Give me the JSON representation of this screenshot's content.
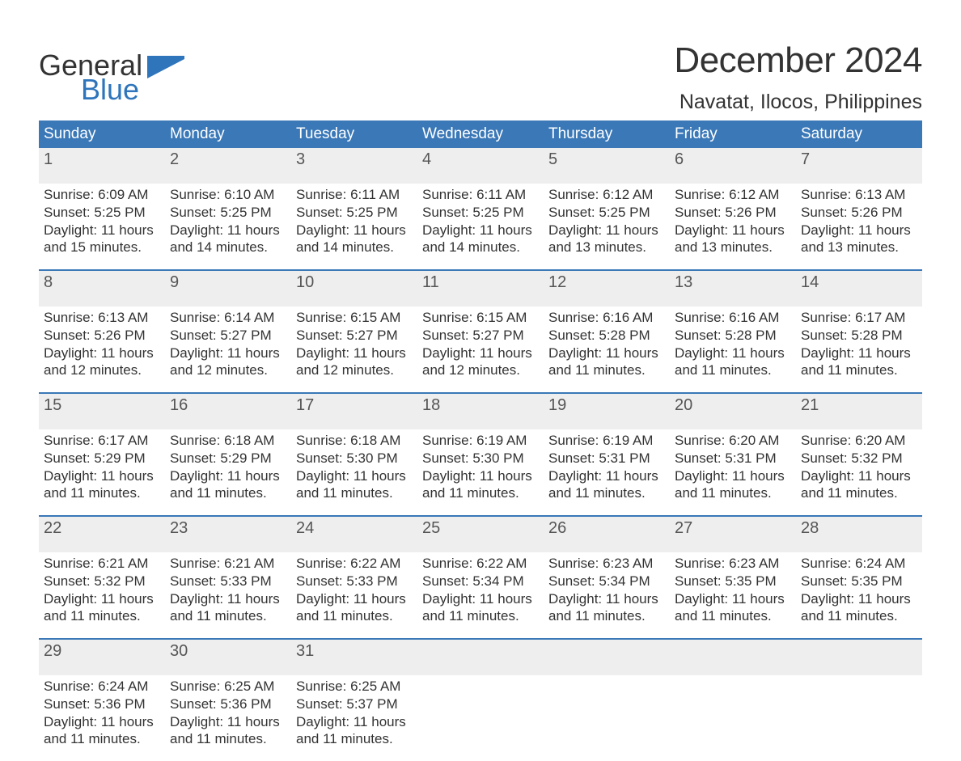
{
  "logo": {
    "line1": "General",
    "line2": "Blue",
    "text_color": "#333333",
    "accent_color": "#2f75bb"
  },
  "header": {
    "month_title": "December 2024",
    "location": "Navatat, Ilocos, Philippines"
  },
  "calendar": {
    "header_bg": "#3a78b8",
    "header_fg": "#ffffff",
    "daynum_bg": "#eeeeee",
    "sep_color": "#3a78b8",
    "day_names": [
      "Sunday",
      "Monday",
      "Tuesday",
      "Wednesday",
      "Thursday",
      "Friday",
      "Saturday"
    ],
    "weeks": [
      [
        {
          "n": "1",
          "sunrise": "Sunrise: 6:09 AM",
          "sunset": "Sunset: 5:25 PM",
          "dl1": "Daylight: 11 hours",
          "dl2": "and 15 minutes."
        },
        {
          "n": "2",
          "sunrise": "Sunrise: 6:10 AM",
          "sunset": "Sunset: 5:25 PM",
          "dl1": "Daylight: 11 hours",
          "dl2": "and 14 minutes."
        },
        {
          "n": "3",
          "sunrise": "Sunrise: 6:11 AM",
          "sunset": "Sunset: 5:25 PM",
          "dl1": "Daylight: 11 hours",
          "dl2": "and 14 minutes."
        },
        {
          "n": "4",
          "sunrise": "Sunrise: 6:11 AM",
          "sunset": "Sunset: 5:25 PM",
          "dl1": "Daylight: 11 hours",
          "dl2": "and 14 minutes."
        },
        {
          "n": "5",
          "sunrise": "Sunrise: 6:12 AM",
          "sunset": "Sunset: 5:25 PM",
          "dl1": "Daylight: 11 hours",
          "dl2": "and 13 minutes."
        },
        {
          "n": "6",
          "sunrise": "Sunrise: 6:12 AM",
          "sunset": "Sunset: 5:26 PM",
          "dl1": "Daylight: 11 hours",
          "dl2": "and 13 minutes."
        },
        {
          "n": "7",
          "sunrise": "Sunrise: 6:13 AM",
          "sunset": "Sunset: 5:26 PM",
          "dl1": "Daylight: 11 hours",
          "dl2": "and 13 minutes."
        }
      ],
      [
        {
          "n": "8",
          "sunrise": "Sunrise: 6:13 AM",
          "sunset": "Sunset: 5:26 PM",
          "dl1": "Daylight: 11 hours",
          "dl2": "and 12 minutes."
        },
        {
          "n": "9",
          "sunrise": "Sunrise: 6:14 AM",
          "sunset": "Sunset: 5:27 PM",
          "dl1": "Daylight: 11 hours",
          "dl2": "and 12 minutes."
        },
        {
          "n": "10",
          "sunrise": "Sunrise: 6:15 AM",
          "sunset": "Sunset: 5:27 PM",
          "dl1": "Daylight: 11 hours",
          "dl2": "and 12 minutes."
        },
        {
          "n": "11",
          "sunrise": "Sunrise: 6:15 AM",
          "sunset": "Sunset: 5:27 PM",
          "dl1": "Daylight: 11 hours",
          "dl2": "and 12 minutes."
        },
        {
          "n": "12",
          "sunrise": "Sunrise: 6:16 AM",
          "sunset": "Sunset: 5:28 PM",
          "dl1": "Daylight: 11 hours",
          "dl2": "and 11 minutes."
        },
        {
          "n": "13",
          "sunrise": "Sunrise: 6:16 AM",
          "sunset": "Sunset: 5:28 PM",
          "dl1": "Daylight: 11 hours",
          "dl2": "and 11 minutes."
        },
        {
          "n": "14",
          "sunrise": "Sunrise: 6:17 AM",
          "sunset": "Sunset: 5:28 PM",
          "dl1": "Daylight: 11 hours",
          "dl2": "and 11 minutes."
        }
      ],
      [
        {
          "n": "15",
          "sunrise": "Sunrise: 6:17 AM",
          "sunset": "Sunset: 5:29 PM",
          "dl1": "Daylight: 11 hours",
          "dl2": "and 11 minutes."
        },
        {
          "n": "16",
          "sunrise": "Sunrise: 6:18 AM",
          "sunset": "Sunset: 5:29 PM",
          "dl1": "Daylight: 11 hours",
          "dl2": "and 11 minutes."
        },
        {
          "n": "17",
          "sunrise": "Sunrise: 6:18 AM",
          "sunset": "Sunset: 5:30 PM",
          "dl1": "Daylight: 11 hours",
          "dl2": "and 11 minutes."
        },
        {
          "n": "18",
          "sunrise": "Sunrise: 6:19 AM",
          "sunset": "Sunset: 5:30 PM",
          "dl1": "Daylight: 11 hours",
          "dl2": "and 11 minutes."
        },
        {
          "n": "19",
          "sunrise": "Sunrise: 6:19 AM",
          "sunset": "Sunset: 5:31 PM",
          "dl1": "Daylight: 11 hours",
          "dl2": "and 11 minutes."
        },
        {
          "n": "20",
          "sunrise": "Sunrise: 6:20 AM",
          "sunset": "Sunset: 5:31 PM",
          "dl1": "Daylight: 11 hours",
          "dl2": "and 11 minutes."
        },
        {
          "n": "21",
          "sunrise": "Sunrise: 6:20 AM",
          "sunset": "Sunset: 5:32 PM",
          "dl1": "Daylight: 11 hours",
          "dl2": "and 11 minutes."
        }
      ],
      [
        {
          "n": "22",
          "sunrise": "Sunrise: 6:21 AM",
          "sunset": "Sunset: 5:32 PM",
          "dl1": "Daylight: 11 hours",
          "dl2": "and 11 minutes."
        },
        {
          "n": "23",
          "sunrise": "Sunrise: 6:21 AM",
          "sunset": "Sunset: 5:33 PM",
          "dl1": "Daylight: 11 hours",
          "dl2": "and 11 minutes."
        },
        {
          "n": "24",
          "sunrise": "Sunrise: 6:22 AM",
          "sunset": "Sunset: 5:33 PM",
          "dl1": "Daylight: 11 hours",
          "dl2": "and 11 minutes."
        },
        {
          "n": "25",
          "sunrise": "Sunrise: 6:22 AM",
          "sunset": "Sunset: 5:34 PM",
          "dl1": "Daylight: 11 hours",
          "dl2": "and 11 minutes."
        },
        {
          "n": "26",
          "sunrise": "Sunrise: 6:23 AM",
          "sunset": "Sunset: 5:34 PM",
          "dl1": "Daylight: 11 hours",
          "dl2": "and 11 minutes."
        },
        {
          "n": "27",
          "sunrise": "Sunrise: 6:23 AM",
          "sunset": "Sunset: 5:35 PM",
          "dl1": "Daylight: 11 hours",
          "dl2": "and 11 minutes."
        },
        {
          "n": "28",
          "sunrise": "Sunrise: 6:24 AM",
          "sunset": "Sunset: 5:35 PM",
          "dl1": "Daylight: 11 hours",
          "dl2": "and 11 minutes."
        }
      ],
      [
        {
          "n": "29",
          "sunrise": "Sunrise: 6:24 AM",
          "sunset": "Sunset: 5:36 PM",
          "dl1": "Daylight: 11 hours",
          "dl2": "and 11 minutes."
        },
        {
          "n": "30",
          "sunrise": "Sunrise: 6:25 AM",
          "sunset": "Sunset: 5:36 PM",
          "dl1": "Daylight: 11 hours",
          "dl2": "and 11 minutes."
        },
        {
          "n": "31",
          "sunrise": "Sunrise: 6:25 AM",
          "sunset": "Sunset: 5:37 PM",
          "dl1": "Daylight: 11 hours",
          "dl2": "and 11 minutes."
        },
        null,
        null,
        null,
        null
      ]
    ]
  }
}
